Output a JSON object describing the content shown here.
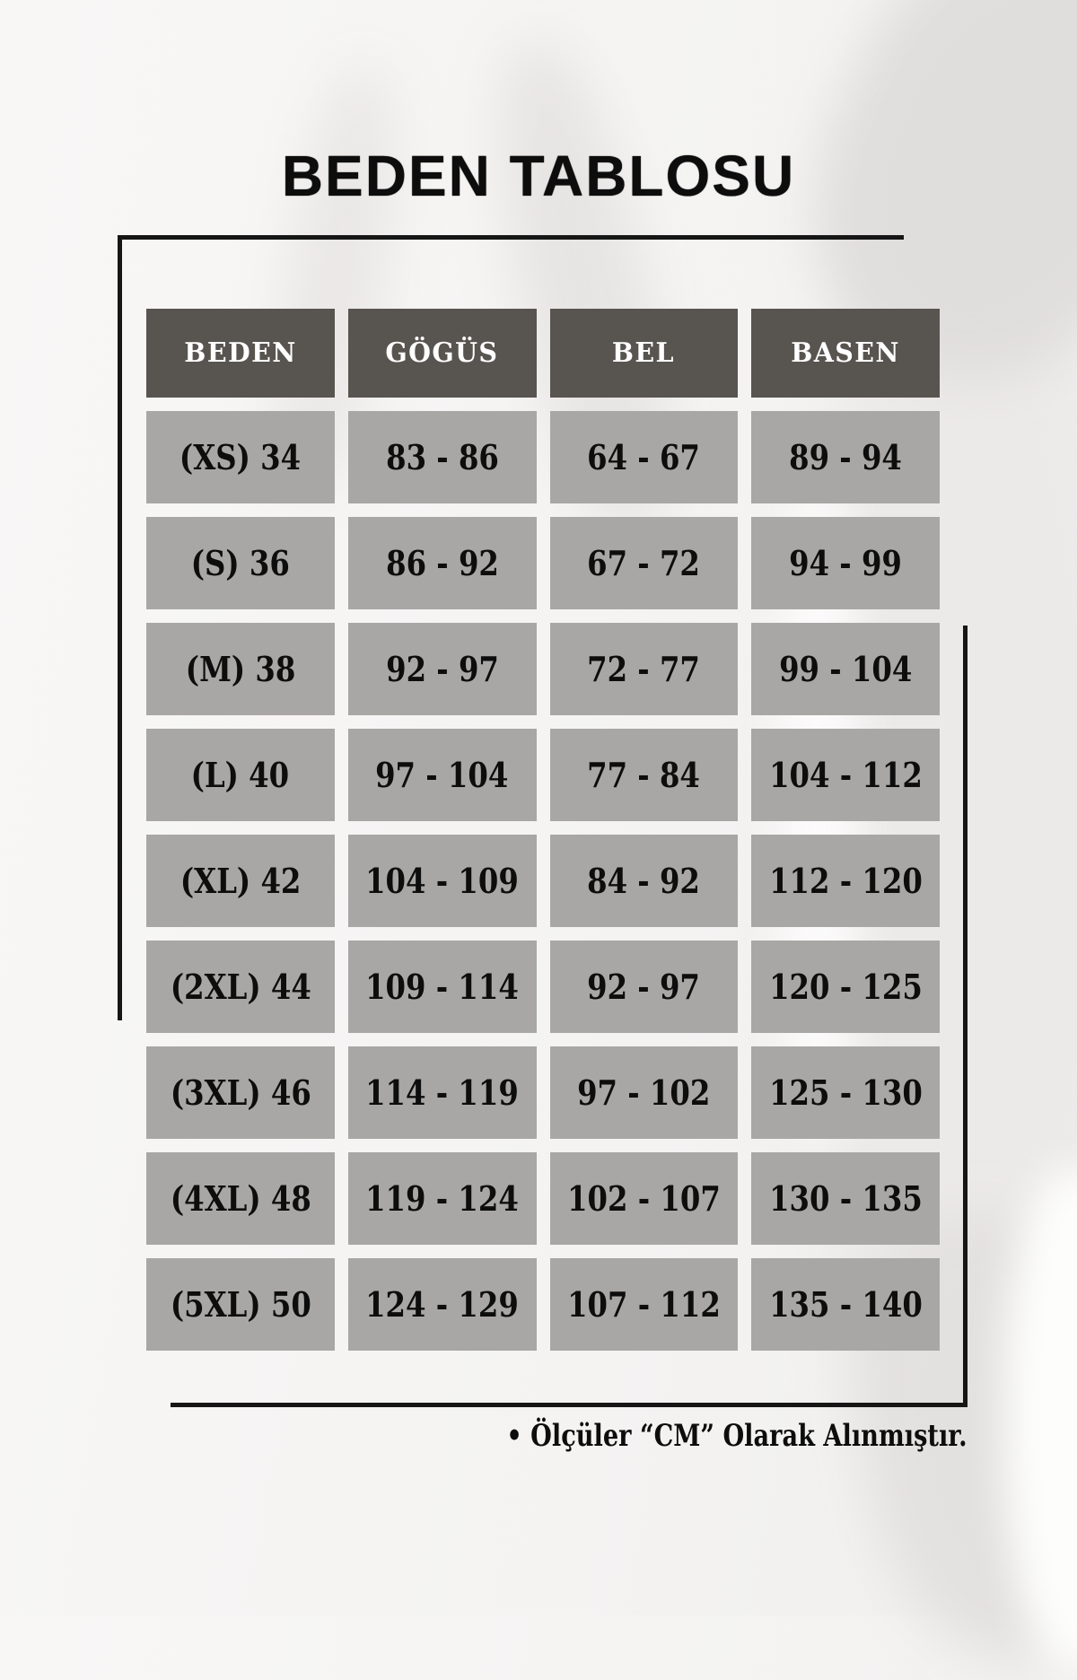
{
  "title": "BEDEN TABLOSU",
  "table": {
    "headers": [
      "BEDEN",
      "GÖGÜS",
      "BEL",
      "BASEN"
    ],
    "rows": [
      [
        "(XS) 34",
        "83 - 86",
        "64 - 67",
        "89 - 94"
      ],
      [
        "(S) 36",
        "86 - 92",
        "67 - 72",
        "94 - 99"
      ],
      [
        "(M) 38",
        "92 - 97",
        "72 - 77",
        "99 - 104"
      ],
      [
        "(L) 40",
        "97 - 104",
        "77 - 84",
        "104 - 112"
      ],
      [
        "(XL) 42",
        "104 - 109",
        "84 - 92",
        "112 - 120"
      ],
      [
        "(2XL) 44",
        "109 - 114",
        "92 - 97",
        "120 - 125"
      ],
      [
        "(3XL) 46",
        "114 - 119",
        "97 - 102",
        "125 - 130"
      ],
      [
        "(4XL) 48",
        "119 - 124",
        "102 - 107",
        "130 - 135"
      ],
      [
        "(5XL) 50",
        "124 - 129",
        "107 - 112",
        "135 - 140"
      ]
    ]
  },
  "note": "• Ölçüler “CM” Olarak Alınmıştır.",
  "colors": {
    "header_bg": "#585450",
    "cell_bg": "#a9a7a5",
    "frame_line": "#161616",
    "header_text": "#ffffff",
    "cell_text": "#0d0d0d",
    "title_text": "#0d0d0d"
  }
}
